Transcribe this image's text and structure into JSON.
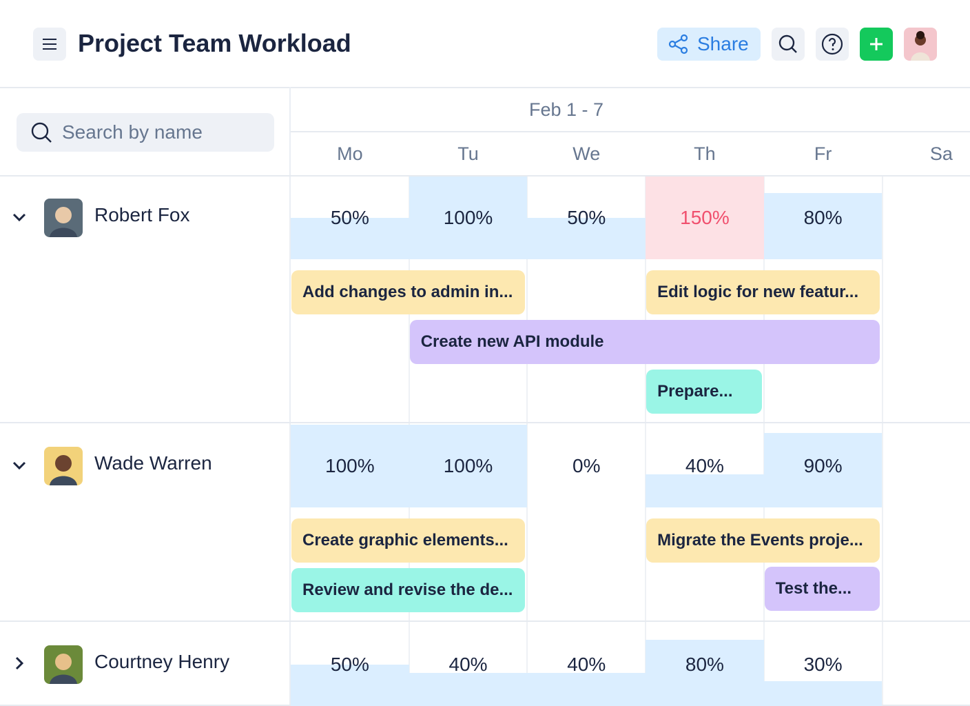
{
  "header": {
    "title": "Project Team Workload",
    "share": "Share"
  },
  "search": {
    "placeholder": "Search by name"
  },
  "week": {
    "label": "Feb 1 - 7",
    "days": [
      "Mo",
      "Tu",
      "We",
      "Th",
      "Fr",
      "Sa"
    ]
  },
  "people": [
    {
      "name": "Robert Fox",
      "loads": [
        {
          "value": 50,
          "label": "50%"
        },
        {
          "value": 100,
          "label": "100%"
        },
        {
          "value": 50,
          "label": "50%"
        },
        {
          "value": 150,
          "label": "150%"
        },
        {
          "value": 80,
          "label": "80%"
        }
      ],
      "tasks": [
        "Add changes to admin in...",
        "Edit logic for new featur...",
        "Create new API module",
        "Prepare..."
      ]
    },
    {
      "name": "Wade Warren",
      "loads": [
        {
          "value": 100,
          "label": "100%"
        },
        {
          "value": 100,
          "label": "100%"
        },
        {
          "value": 0,
          "label": "0%"
        },
        {
          "value": 40,
          "label": "40%"
        },
        {
          "value": 90,
          "label": "90%"
        }
      ],
      "tasks": [
        "Create graphic elements...",
        "Migrate the Events proje...",
        "Review and revise the de...",
        "Test the..."
      ]
    },
    {
      "name": "Courtney Henry",
      "loads": [
        {
          "value": 50,
          "label": "50%"
        },
        {
          "value": 40,
          "label": "40%"
        },
        {
          "value": 40,
          "label": "40%"
        },
        {
          "value": 80,
          "label": "80%"
        },
        {
          "value": 30,
          "label": "30%"
        }
      ],
      "tasks": []
    }
  ]
}
